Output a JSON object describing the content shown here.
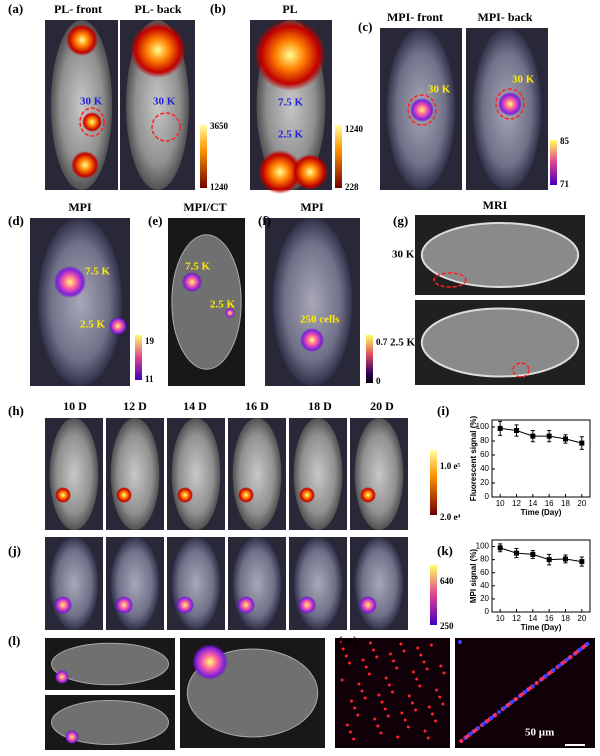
{
  "panels": [
    {
      "label": "(a)",
      "titles": [
        "PL- front",
        "PL- back"
      ],
      "annotations": [
        "30 K",
        "30 K"
      ],
      "colorbar": [
        "3650",
        "1240"
      ]
    },
    {
      "label": "(b)",
      "titles": [
        "PL"
      ],
      "annotations": [
        "7.5 K",
        "2.5 K"
      ],
      "colorbar": [
        "1240",
        "228"
      ]
    },
    {
      "label": "(c)",
      "titles": [
        "MPI- front",
        "MPI- back"
      ],
      "annotations": [
        "30 K",
        "30 K"
      ],
      "colorbar": [
        "85",
        "71"
      ]
    },
    {
      "label": "(d)",
      "titles": [
        "MPI"
      ],
      "annotations": [
        "7.5 K",
        "2.5 K"
      ],
      "colorbar": [
        "19",
        "11"
      ]
    },
    {
      "label": "(e)",
      "titles": [
        "MPI/CT"
      ],
      "annotations": [
        "7.5 K",
        "2.5 K"
      ]
    },
    {
      "label": "(f)",
      "titles": [
        "MPI"
      ],
      "annotations": [
        "250 cells"
      ],
      "colorbar": [
        "0.7",
        "0"
      ]
    },
    {
      "label": "(g)",
      "titles": [
        "MRI"
      ],
      "annotations": [
        "30 K",
        "2.5 K"
      ]
    },
    {
      "label": "(h)",
      "titles": [
        "10 D",
        "12 D",
        "14 D",
        "16 D",
        "18 D",
        "20 D"
      ],
      "colorbar": [
        "1.0 e⁵",
        "2.0 e⁴"
      ]
    },
    {
      "label": "(i)"
    },
    {
      "label": "(j)",
      "colorbar": [
        "640",
        "250"
      ]
    },
    {
      "label": "(k)"
    },
    {
      "label": "(l)"
    },
    {
      "label": "(m)",
      "annotations": [
        "50 µm"
      ]
    }
  ],
  "chart_data": [
    {
      "type": "line",
      "y_label": "Fluorescent signal (%)",
      "x_label": "Time (Day)",
      "x": [
        10,
        12,
        14,
        16,
        18,
        20
      ],
      "values": [
        98,
        95,
        87,
        87,
        83,
        77
      ],
      "errors": [
        10,
        8,
        8,
        8,
        6,
        9
      ],
      "color": "#000000",
      "xlim": [
        9,
        21
      ],
      "ylim": [
        0,
        110
      ],
      "xticks": [
        10,
        12,
        14,
        16,
        18,
        20
      ],
      "yticks": [
        0,
        20,
        40,
        60,
        80,
        100
      ]
    },
    {
      "type": "line",
      "y_label": "MPI signal (%)",
      "x_label": "Time (Day)",
      "x": [
        10,
        12,
        14,
        16,
        18,
        20
      ],
      "values": [
        98,
        90,
        88,
        80,
        81,
        77
      ],
      "errors": [
        6,
        7,
        6,
        8,
        6,
        7
      ],
      "color": "#000000",
      "xlim": [
        9,
        21
      ],
      "ylim": [
        0,
        110
      ],
      "xticks": [
        10,
        12,
        14,
        16,
        18,
        20
      ],
      "yticks": [
        0,
        20,
        40,
        60,
        80,
        100
      ]
    }
  ]
}
